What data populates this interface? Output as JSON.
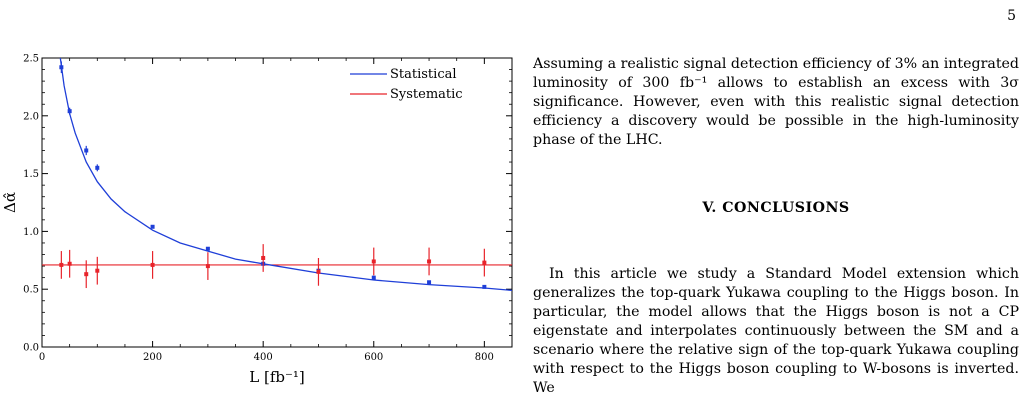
{
  "page_number": "5",
  "chart_data": {
    "type": "line",
    "xlabel": "L [fb⁻¹]",
    "ylabel": "Δα̂",
    "xlim": [
      0,
      850
    ],
    "ylim": [
      0,
      2.5
    ],
    "xticks": [
      0,
      200,
      400,
      600,
      800
    ],
    "yticks": [
      0.0,
      0.5,
      1.0,
      1.5,
      2.0,
      2.5
    ],
    "xtick_labels": [
      "0",
      "200",
      "400",
      "600",
      "800"
    ],
    "ytick_labels": [
      "0.0",
      "0.5",
      "1.0",
      "1.5",
      "2.0",
      "2.5"
    ],
    "legend_position": "top-right",
    "series": [
      {
        "name": "Statistical",
        "color": "#1f3fd8",
        "points": [
          {
            "x": 35,
            "y": 2.42,
            "err": 0.05
          },
          {
            "x": 50,
            "y": 2.04,
            "err": 0.03
          },
          {
            "x": 80,
            "y": 1.7,
            "err": 0.04
          },
          {
            "x": 100,
            "y": 1.55,
            "err": 0.03
          },
          {
            "x": 200,
            "y": 1.04,
            "err": 0.01
          },
          {
            "x": 300,
            "y": 0.85,
            "err": 0.005
          },
          {
            "x": 400,
            "y": 0.72,
            "err": 0.005
          },
          {
            "x": 500,
            "y": 0.66,
            "err": 0.005
          },
          {
            "x": 600,
            "y": 0.6,
            "err": 0.005
          },
          {
            "x": 700,
            "y": 0.56,
            "err": 0.005
          },
          {
            "x": 800,
            "y": 0.52,
            "err": 0.005
          }
        ],
        "fit_curve": [
          {
            "x": 25,
            "y": 2.86
          },
          {
            "x": 30,
            "y": 2.61
          },
          {
            "x": 40,
            "y": 2.26
          },
          {
            "x": 50,
            "y": 2.02
          },
          {
            "x": 60,
            "y": 1.85
          },
          {
            "x": 80,
            "y": 1.6
          },
          {
            "x": 100,
            "y": 1.43
          },
          {
            "x": 125,
            "y": 1.28
          },
          {
            "x": 150,
            "y": 1.17
          },
          {
            "x": 200,
            "y": 1.01
          },
          {
            "x": 250,
            "y": 0.9
          },
          {
            "x": 300,
            "y": 0.83
          },
          {
            "x": 350,
            "y": 0.76
          },
          {
            "x": 400,
            "y": 0.72
          },
          {
            "x": 500,
            "y": 0.64
          },
          {
            "x": 600,
            "y": 0.58
          },
          {
            "x": 700,
            "y": 0.54
          },
          {
            "x": 800,
            "y": 0.51
          },
          {
            "x": 850,
            "y": 0.49
          }
        ]
      },
      {
        "name": "Systematic",
        "color": "#e8242b",
        "line_value": 0.71,
        "points": [
          {
            "x": 35,
            "y": 0.71,
            "err": 0.12
          },
          {
            "x": 50,
            "y": 0.72,
            "err": 0.12
          },
          {
            "x": 80,
            "y": 0.63,
            "err": 0.12
          },
          {
            "x": 100,
            "y": 0.66,
            "err": 0.12
          },
          {
            "x": 200,
            "y": 0.71,
            "err": 0.12
          },
          {
            "x": 300,
            "y": 0.7,
            "err": 0.12
          },
          {
            "x": 400,
            "y": 0.77,
            "err": 0.12
          },
          {
            "x": 500,
            "y": 0.65,
            "err": 0.12
          },
          {
            "x": 600,
            "y": 0.74,
            "err": 0.12
          },
          {
            "x": 700,
            "y": 0.74,
            "err": 0.12
          },
          {
            "x": 800,
            "y": 0.73,
            "err": 0.12
          }
        ]
      }
    ]
  },
  "text": {
    "para1": "Assuming a realistic signal detection efficiency of 3% an integrated luminosity of 300 fb⁻¹ allows to establish an excess with 3σ significance. However, even with this realistic signal detection efficiency a discovery would be possible in the high-luminosity phase of the LHC.",
    "section_heading": "V.    CONCLUSIONS",
    "para2": "In this article we study a Standard Model extension which generalizes the top-quark Yukawa coupling to the Higgs boson. In particular, the model allows that the Higgs boson is not a CP eigenstate and interpolates continuously between the SM and a scenario where the relative sign of the top-quark Yukawa coupling with respect to the Higgs boson coupling to W-bosons is inverted. We"
  }
}
